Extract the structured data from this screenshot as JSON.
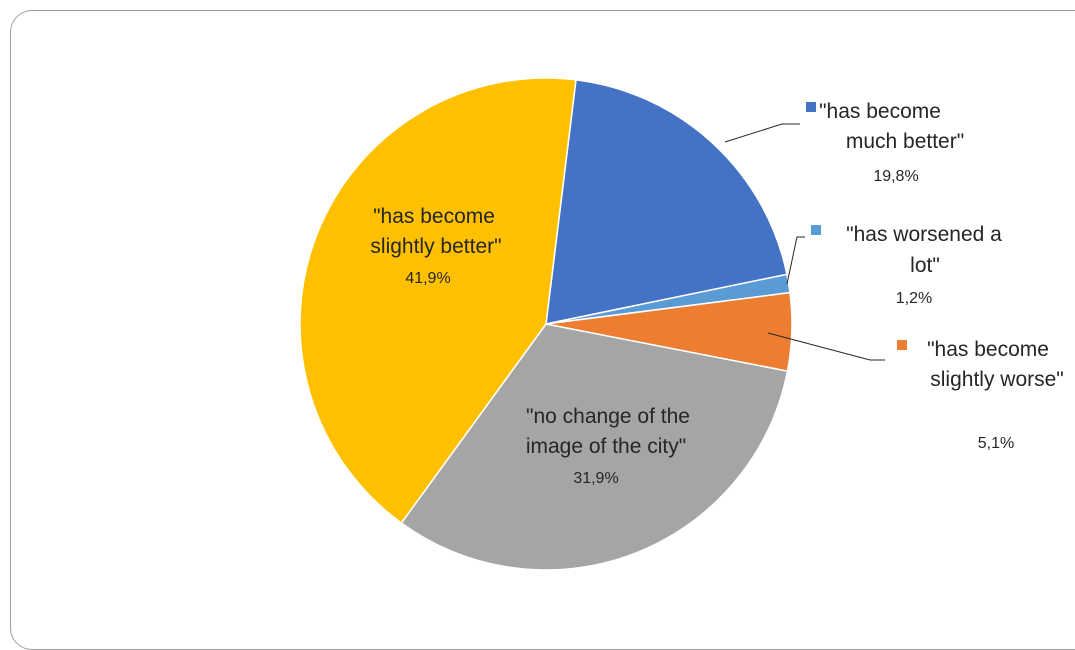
{
  "chart_data": {
    "type": "pie",
    "title": "",
    "slices": [
      {
        "label_lines": [
          "\"has become",
          "much better\""
        ],
        "value": 19.8,
        "value_label": "19,8%",
        "color": "#4472C4"
      },
      {
        "label_lines": [
          "\"has worsened a",
          "lot\""
        ],
        "value": 1.2,
        "value_label": "1,2%",
        "color": "#5B9BD5"
      },
      {
        "label_lines": [
          "\"has become",
          "slightly worse\""
        ],
        "value": 5.1,
        "value_label": "5,1%",
        "color": "#ED7D31"
      },
      {
        "label_lines": [
          "\"no change of the",
          "image of the city\""
        ],
        "value": 31.9,
        "value_label": "31,9%",
        "color": "#A5A5A5"
      },
      {
        "label_lines": [
          "\"has become",
          "slightly better\""
        ],
        "value": 41.9,
        "value_label": "41,9%",
        "color": "#FFC000"
      }
    ],
    "legend": "none",
    "data_labels": "outside-with-leaders"
  }
}
